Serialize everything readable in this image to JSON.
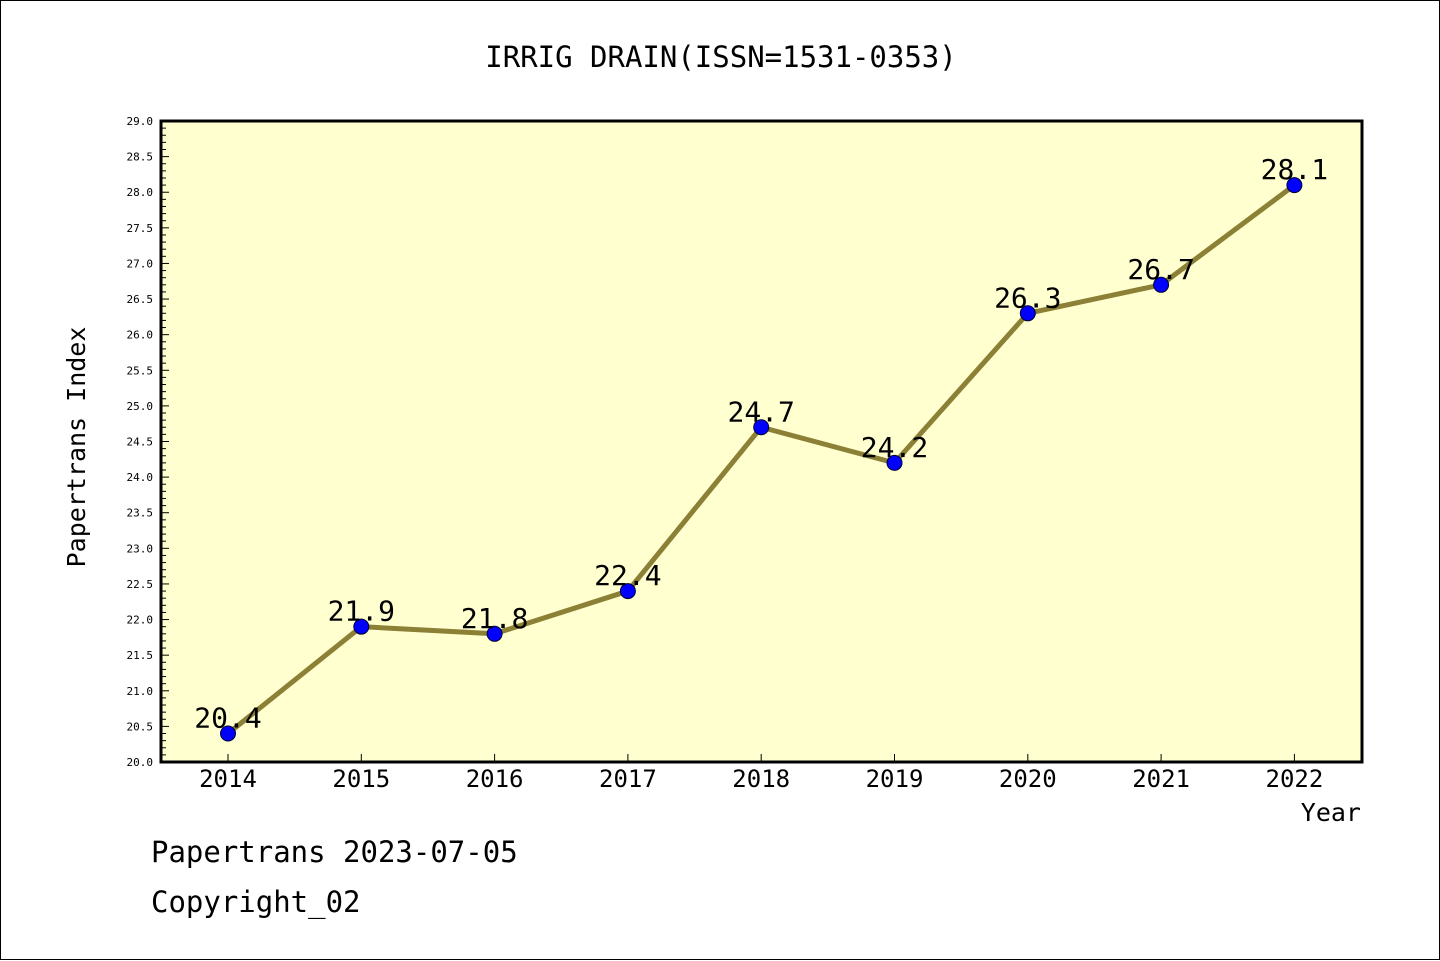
{
  "chart_data": {
    "type": "line",
    "title": "IRRIG DRAIN(ISSN=1531-0353)",
    "xlabel": "Year",
    "ylabel": "Papertrans Index",
    "categories": [
      "2014",
      "2015",
      "2016",
      "2017",
      "2018",
      "2019",
      "2020",
      "2021",
      "2022"
    ],
    "series": [
      {
        "name": "Papertrans Index",
        "values": [
          20.4,
          21.9,
          21.8,
          22.4,
          24.7,
          24.2,
          26.3,
          26.7,
          28.1
        ],
        "value_labels": [
          "20.4",
          "21.9",
          "21.8",
          "22.4",
          "24.7",
          "24.2",
          "26.3",
          "26.7",
          "28.1"
        ]
      }
    ],
    "ylim": [
      20.0,
      29.0
    ],
    "yticks": [
      "20.0",
      "20.5",
      "21.0",
      "21.5",
      "22.0",
      "22.5",
      "23.0",
      "23.5",
      "24.0",
      "24.5",
      "25.0",
      "25.5",
      "26.0",
      "26.5",
      "27.0",
      "27.5",
      "28.0",
      "28.5",
      "29.0"
    ],
    "grid": false,
    "colors": {
      "plot_background": "#ffffd0",
      "line": "#8b8035",
      "marker": "#0000ff",
      "axis": "#000000"
    }
  },
  "footer": {
    "line1": "Papertrans 2023-07-05",
    "line2": "Copyright_02"
  }
}
